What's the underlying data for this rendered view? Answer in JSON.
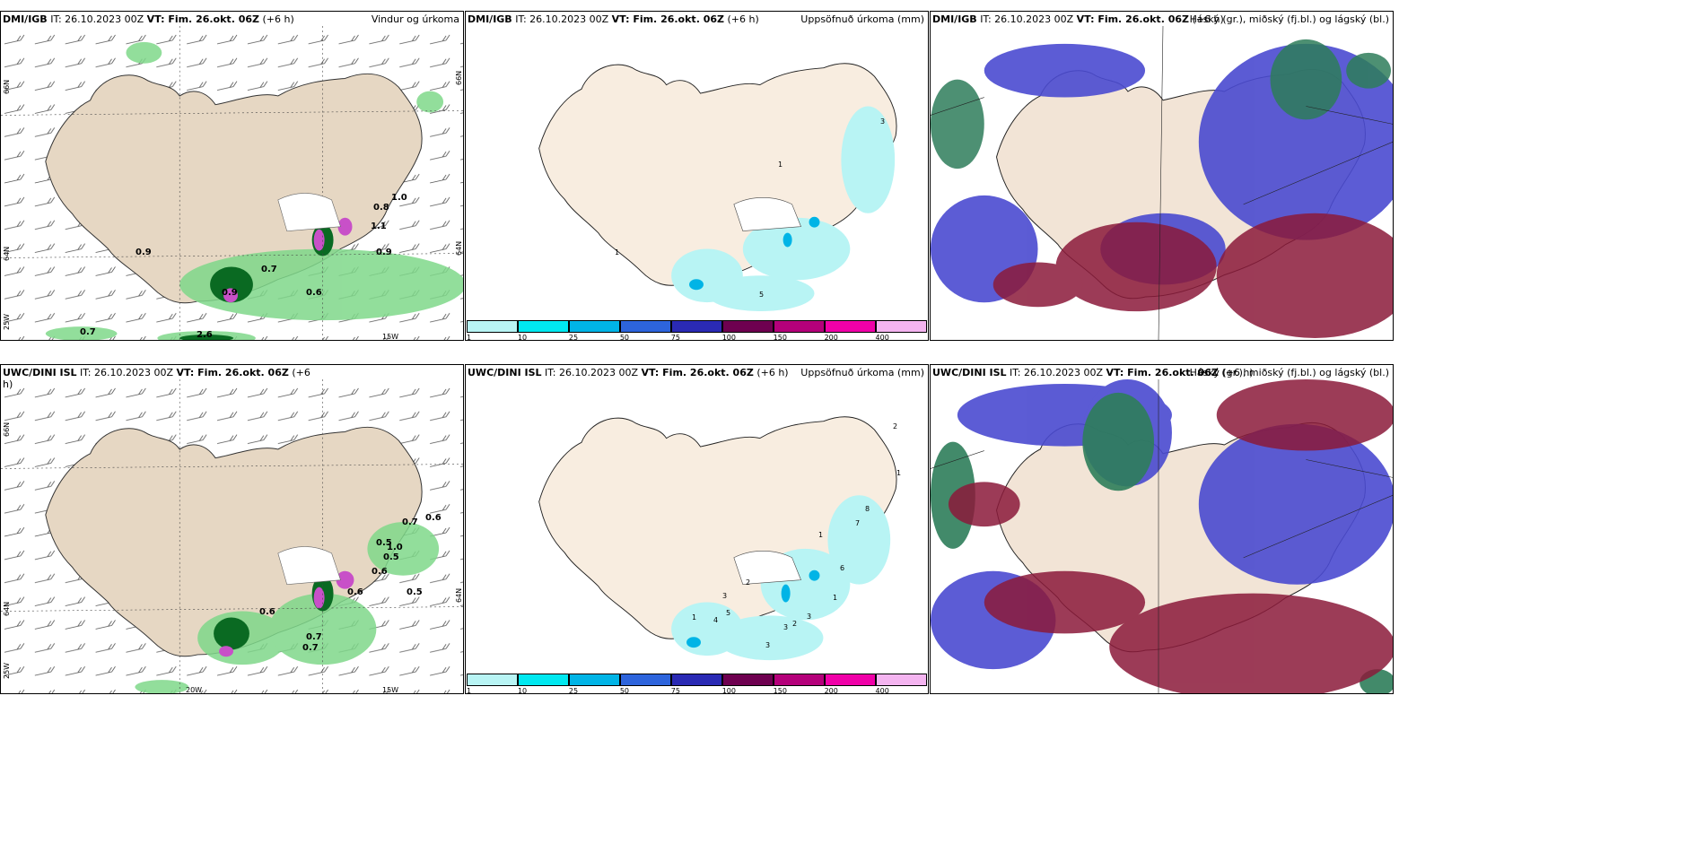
{
  "panels": {
    "p1": {
      "source": "DMI/IGB",
      "it": "IT: 26.10.2023 00Z",
      "vt_label": "VT: Fim. 26.okt. 06Z",
      "lead": "(+6 h)",
      "right_title": "Vindur og úrkoma",
      "axis": {
        "lat1": "66N",
        "lat2": "64N",
        "lon1": "25W",
        "lon2": "15W",
        "lat1_r": "66N",
        "lat2_r": "64N"
      },
      "values": [
        "0.9",
        "1.0",
        "0.8",
        "1.1",
        "0.9",
        "0.7",
        "0.6",
        "0.9",
        "0.7",
        "2.6"
      ]
    },
    "p2": {
      "source": "DMI/IGB",
      "it": "IT: 26.10.2023 00Z",
      "vt_label": "VT: Fim. 26.okt. 06Z",
      "lead": "(+6 h)",
      "right_title": "Uppsöfnuð úrkoma (mm)",
      "values": [
        "3",
        "1",
        "1",
        "5"
      ]
    },
    "p3": {
      "source": "DMI/IGB",
      "it": "IT: 26.10.2023 00Z",
      "vt_label": "VT: Fim. 26.okt. 06Z",
      "lead": "(+6 h)",
      "right_title": "Háský (gr.), miðský (fj.bl.) og lágský (bl.)"
    },
    "p4": {
      "source": "UWC/DINI ISL",
      "it": "IT: 26.10.2023 00Z",
      "vt_label": "VT: Fim. 26.okt. 06Z",
      "lead": "(+6",
      "lead2": "h)",
      "axis": {
        "lat1": "66N",
        "lat2": "64N",
        "lon0": "20W",
        "lon1": "25W",
        "lon2": "15W",
        "lat2_r": "64N"
      },
      "values": [
        "0.7",
        "0.6",
        "0.5",
        "1.0",
        "0.5",
        "0.6",
        "0.6",
        "0.5",
        "0.6",
        "0.7",
        "0.7"
      ]
    },
    "p5": {
      "source": "UWC/DINI ISL",
      "it": "IT: 26.10.2023 00Z",
      "vt_label": "VT: Fim. 26.okt. 06Z",
      "lead": "(+6 h)",
      "right_title": "Uppsöfnuð úrkoma (mm)",
      "values": [
        "2",
        "1",
        "8",
        "7",
        "1",
        "6",
        "1",
        "3",
        "2",
        "4",
        "5",
        "3",
        "2",
        "3",
        "1",
        "3"
      ]
    },
    "p6": {
      "source": "UWC/DINI ISL",
      "it": "IT: 26.10.2023 00Z",
      "vt_label": "VT: Fim. 26.okt. 06Z",
      "lead": "(+6 h)",
      "right_title": "Háský (gr.), miðský (fj.bl.) og lágský (bl.)"
    }
  },
  "colorbar": {
    "ticks": [
      "1",
      "10",
      "25",
      "50",
      "75",
      "100",
      "150",
      "200",
      "400"
    ],
    "colors": [
      "#b8f4f4",
      "#00e8f0",
      "#00b4e6",
      "#2d64dc",
      "#2a2ab4",
      "#6e0050",
      "#b4007a",
      "#f000a8",
      "#f4b4f0"
    ]
  },
  "colors": {
    "land": "#f8ede0",
    "land_wind": "#e6d7c3",
    "precip_green": "#7fd88a",
    "precip_dark": "#0a6a22",
    "precip_magenta": "#c850c8",
    "accum_cyan": "#b8f4f4",
    "cloud_high": "#2e7d5a",
    "cloud_mid": "#8b1a3a",
    "cloud_low": "#4a4ad0"
  }
}
